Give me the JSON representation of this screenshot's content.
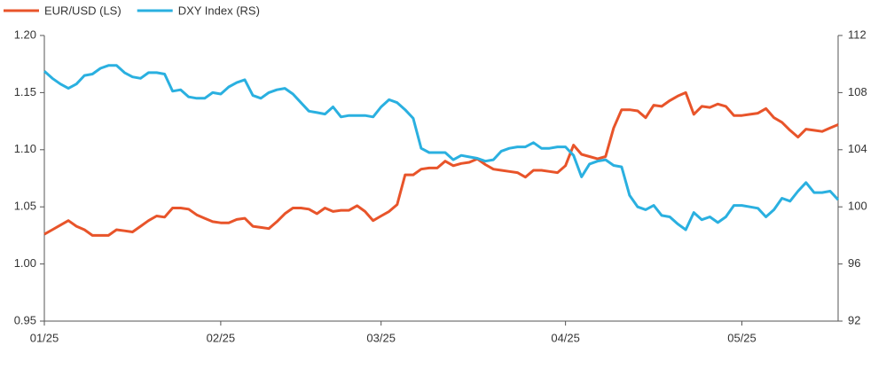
{
  "chart_data": {
    "type": "line",
    "categories": [
      "01/25",
      null,
      null,
      null,
      null,
      null,
      null,
      null,
      null,
      null,
      null,
      null,
      null,
      null,
      null,
      null,
      null,
      null,
      null,
      null,
      null,
      null,
      "02/25",
      null,
      null,
      null,
      null,
      null,
      null,
      null,
      null,
      null,
      null,
      null,
      null,
      null,
      null,
      null,
      null,
      null,
      null,
      null,
      "03/25",
      null,
      null,
      null,
      null,
      null,
      null,
      null,
      null,
      null,
      null,
      null,
      null,
      null,
      null,
      null,
      null,
      null,
      null,
      null,
      null,
      null,
      null,
      "04/25",
      null,
      null,
      null,
      null,
      null,
      null,
      null,
      null,
      null,
      null,
      null,
      null,
      null,
      null,
      null,
      null,
      null,
      null,
      null,
      null,
      null,
      "05/25",
      null,
      null,
      null,
      null,
      null,
      null,
      null,
      null,
      null,
      null,
      null,
      null
    ],
    "series": [
      {
        "name": "EUR/USD (LS)",
        "color": "#e8542a",
        "values": [
          1.026,
          1.03,
          1.034,
          1.038,
          1.033,
          1.03,
          1.025,
          1.025,
          1.025,
          1.03,
          1.029,
          1.028,
          1.033,
          1.038,
          1.042,
          1.041,
          1.049,
          1.049,
          1.048,
          1.043,
          1.04,
          1.037,
          1.036,
          1.036,
          1.039,
          1.04,
          1.033,
          1.032,
          1.031,
          1.037,
          1.044,
          1.049,
          1.049,
          1.048,
          1.044,
          1.049,
          1.046,
          1.047,
          1.047,
          1.051,
          1.046,
          1.038,
          1.042,
          1.046,
          1.052,
          1.078,
          1.078,
          1.083,
          1.084,
          1.084,
          1.09,
          1.086,
          1.088,
          1.089,
          1.092,
          1.087,
          1.083,
          1.082,
          1.081,
          1.08,
          1.076,
          1.082,
          1.082,
          1.081,
          1.08,
          1.086,
          1.104,
          1.096,
          1.094,
          1.092,
          1.094,
          1.119,
          1.135,
          1.135,
          1.134,
          1.128,
          1.139,
          1.138,
          1.143,
          1.147,
          1.15,
          1.131,
          1.138,
          1.137,
          1.14,
          1.138,
          1.13,
          1.13,
          1.131,
          1.132,
          1.136,
          1.128,
          1.124,
          1.117,
          1.111,
          1.118,
          1.117,
          1.116,
          1.119,
          1.122
        ]
      },
      {
        "name": "DXY Index (RS)",
        "color": "#2ab0e0",
        "axis": "y2",
        "values": [
          109.5,
          109.0,
          108.6,
          108.3,
          108.6,
          109.2,
          109.3,
          109.7,
          109.9,
          109.9,
          109.4,
          109.1,
          109.0,
          109.4,
          109.4,
          109.3,
          108.1,
          108.2,
          107.7,
          107.6,
          107.6,
          108.0,
          107.9,
          108.4,
          108.7,
          108.9,
          107.8,
          107.6,
          108.0,
          108.2,
          108.3,
          107.9,
          107.3,
          106.7,
          106.6,
          106.5,
          107.0,
          106.3,
          106.4,
          106.4,
          106.4,
          106.3,
          107.0,
          107.5,
          107.3,
          106.8,
          106.2,
          104.1,
          103.8,
          103.8,
          103.8,
          103.3,
          103.6,
          103.5,
          103.4,
          103.2,
          103.3,
          103.9,
          104.1,
          104.2,
          104.2,
          104.5,
          104.1,
          104.1,
          104.2,
          104.2,
          103.6,
          102.1,
          103.0,
          103.2,
          103.3,
          102.9,
          102.8,
          100.8,
          100.0,
          99.8,
          100.1,
          99.4,
          99.3,
          98.8,
          98.4,
          99.6,
          99.1,
          99.3,
          98.9,
          99.3,
          100.1,
          100.1,
          100.0,
          99.9,
          99.3,
          99.8,
          100.6,
          100.4,
          101.1,
          101.7,
          101.0,
          101.0,
          101.1,
          100.5
        ]
      }
    ],
    "ylim": [
      0.95,
      1.2
    ],
    "yticks": [
      0.95,
      {
        "value": 1,
        "label": "1.00"
      },
      1.05,
      {
        "value": 1.1,
        "label": "1.10"
      },
      1.15,
      {
        "value": 1.2,
        "label": "1.20"
      }
    ],
    "y2lim": [
      92,
      112
    ],
    "y2ticks": [
      92,
      96,
      100,
      104,
      108,
      112
    ],
    "legend": "top-left"
  }
}
